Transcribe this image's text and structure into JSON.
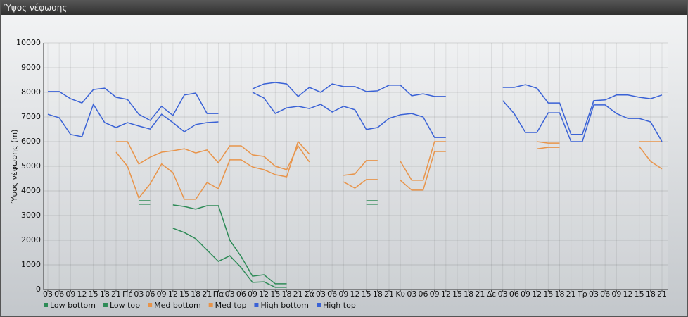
{
  "chart_data": {
    "type": "line",
    "title": "Ύψος νέφωσης",
    "ylabel": "Ύψος νέφωσης (m)",
    "categories": [
      "03",
      "06",
      "09",
      "12",
      "15",
      "18",
      "21",
      "Πέ",
      "03",
      "06",
      "09",
      "12",
      "15",
      "18",
      "21",
      "Πα",
      "03",
      "06",
      "09",
      "12",
      "15",
      "18",
      "21",
      "Σά",
      "03",
      "06",
      "09",
      "12",
      "15",
      "18",
      "21",
      "Κυ",
      "03",
      "06",
      "09",
      "12",
      "15",
      "18",
      "21",
      "Δε",
      "03",
      "06",
      "09",
      "12",
      "15",
      "18",
      "21",
      "Τρ",
      "03",
      "06",
      "09",
      "12",
      "15",
      "18",
      "21"
    ],
    "ylim": [
      0,
      10000
    ],
    "yticks": [
      0,
      1000,
      2000,
      3000,
      4000,
      5000,
      6000,
      7000,
      8000,
      9000,
      10000
    ],
    "grid": true,
    "series": [
      {
        "name": "Low bottom",
        "color": "#2e8b57",
        "values": [
          null,
          null,
          null,
          null,
          null,
          null,
          null,
          null,
          3460,
          3460,
          null,
          2490,
          2310,
          2060,
          1600,
          1140,
          1370,
          890,
          290,
          310,
          90,
          90,
          null,
          null,
          null,
          null,
          null,
          null,
          3460,
          3460,
          null,
          null,
          null,
          null,
          null,
          null,
          null,
          null,
          null,
          null,
          null,
          null,
          null,
          null,
          null,
          null,
          null,
          null,
          null,
          null,
          null,
          null,
          null,
          null,
          null
        ]
      },
      {
        "name": "Low top",
        "color": "#2e8b57",
        "values": [
          null,
          null,
          null,
          null,
          null,
          null,
          null,
          null,
          3600,
          3600,
          null,
          3430,
          3370,
          3260,
          3400,
          3400,
          2000,
          1340,
          540,
          600,
          230,
          230,
          null,
          null,
          null,
          null,
          null,
          null,
          3600,
          3600,
          null,
          null,
          null,
          null,
          null,
          null,
          null,
          null,
          null,
          null,
          null,
          null,
          null,
          null,
          null,
          null,
          null,
          null,
          null,
          null,
          null,
          null,
          null,
          null,
          null
        ]
      },
      {
        "name": "Med bottom",
        "color": "#e8944a",
        "values": [
          null,
          null,
          null,
          null,
          null,
          null,
          5570,
          5000,
          3710,
          4290,
          5090,
          4740,
          3660,
          3660,
          4340,
          4090,
          5260,
          5260,
          4970,
          4860,
          4660,
          4570,
          6000,
          5490,
          null,
          null,
          4370,
          4110,
          4460,
          4460,
          null,
          4430,
          4030,
          4030,
          5600,
          5600,
          null,
          null,
          null,
          null,
          null,
          null,
          null,
          5710,
          5770,
          5770,
          null,
          null,
          null,
          null,
          null,
          null,
          5800,
          5200,
          4890
        ]
      },
      {
        "name": "Med top",
        "color": "#e8944a",
        "values": [
          null,
          null,
          null,
          null,
          null,
          null,
          6000,
          6000,
          5090,
          5370,
          5570,
          5630,
          5710,
          5540,
          5660,
          5140,
          5830,
          5830,
          5460,
          5400,
          5000,
          4860,
          5830,
          5170,
          null,
          null,
          4630,
          4690,
          5230,
          5230,
          null,
          5200,
          4430,
          4430,
          6000,
          6000,
          null,
          null,
          null,
          null,
          null,
          null,
          null,
          6000,
          5940,
          5940,
          null,
          null,
          null,
          null,
          null,
          null,
          6000,
          6000,
          6000
        ]
      },
      {
        "name": "High bottom",
        "color": "#3a62d6",
        "values": [
          7110,
          6970,
          6290,
          6200,
          7510,
          6770,
          6570,
          6770,
          6630,
          6510,
          7110,
          6770,
          6400,
          6690,
          6770,
          6800,
          null,
          null,
          8000,
          7770,
          7140,
          7370,
          7430,
          7340,
          7510,
          7200,
          7430,
          7290,
          6490,
          6570,
          6940,
          7090,
          7140,
          7000,
          6170,
          6170,
          null,
          null,
          null,
          null,
          7660,
          7140,
          6370,
          6370,
          7170,
          7170,
          6000,
          6000,
          7490,
          7490,
          7140,
          6940,
          6940,
          6800,
          6000
        ]
      },
      {
        "name": "High top",
        "color": "#3a62d6",
        "values": [
          8030,
          8030,
          7740,
          7570,
          8110,
          8170,
          7800,
          7710,
          7110,
          6860,
          7430,
          7060,
          7890,
          7970,
          7140,
          7140,
          null,
          null,
          8140,
          8340,
          8400,
          8340,
          7830,
          8200,
          8000,
          8340,
          8230,
          8230,
          8030,
          8060,
          8290,
          8290,
          7860,
          7940,
          7830,
          7830,
          null,
          null,
          null,
          null,
          8200,
          8200,
          8310,
          8170,
          7570,
          7570,
          6290,
          6290,
          7660,
          7690,
          7890,
          7890,
          7800,
          7740,
          7890
        ]
      }
    ]
  }
}
